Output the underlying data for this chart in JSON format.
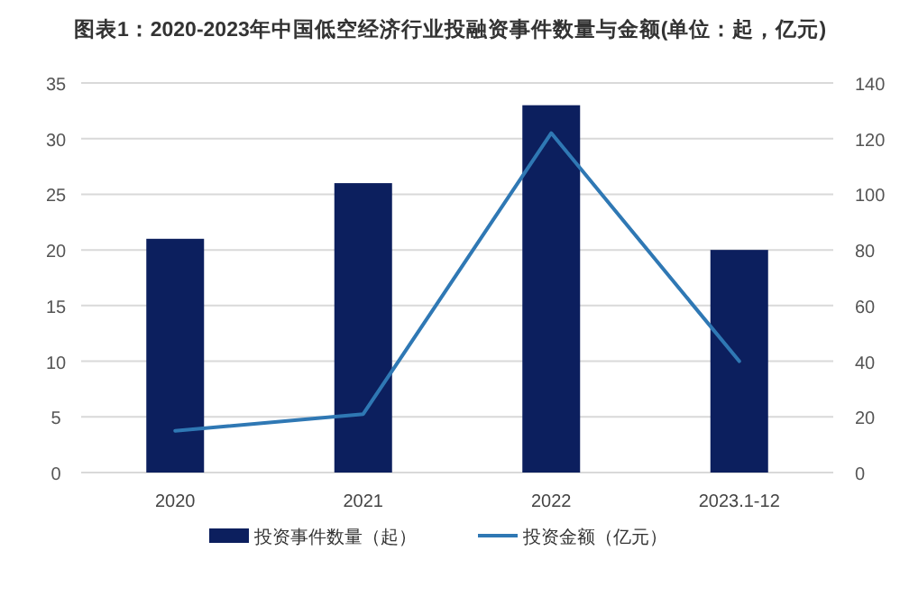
{
  "chart_data": {
    "type": "bar",
    "title": "图表1：2020-2023年中国低空经济行业投融资事件数量与金额(单位：起，亿元)",
    "categories": [
      "2020",
      "2021",
      "2022",
      "2023.1-12"
    ],
    "series": [
      {
        "name": "投资事件数量（起）",
        "color": "#0c1f5e",
        "values": [
          21,
          26,
          33,
          20
        ]
      },
      {
        "name": "投资金额（亿元）",
        "type": "line",
        "axis": "y2",
        "color": "#2f78b4",
        "values": [
          15,
          21,
          122,
          40
        ]
      }
    ],
    "ylim": [
      0,
      35
    ],
    "yticks": [
      0,
      5,
      10,
      15,
      20,
      25,
      30,
      35
    ],
    "y2lim": [
      0,
      140
    ],
    "y2ticks": [
      0,
      20,
      40,
      60,
      80,
      100,
      120,
      140
    ],
    "grid": "y",
    "legend": "bottom",
    "marker": "none",
    "line_style": "solid"
  }
}
